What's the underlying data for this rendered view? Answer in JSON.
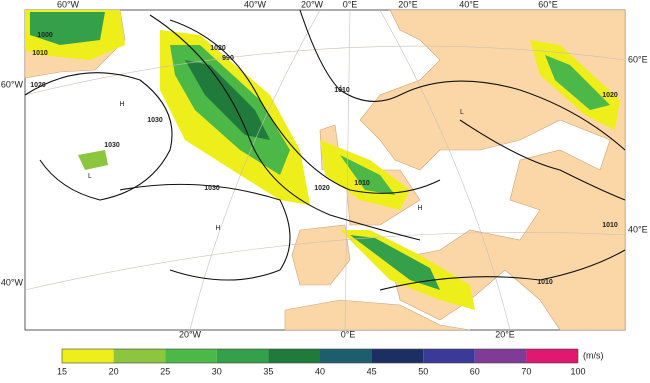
{
  "map": {
    "top_labels": [
      "60°W",
      "40°W",
      "20°W",
      "0°E",
      "20°E",
      "40°E",
      "60°E"
    ],
    "bottom_labels": [
      "20°W",
      "0°E",
      "20°E"
    ],
    "left_labels": [
      "60°W",
      "40°W"
    ],
    "right_labels": [
      "60°E",
      "40°E"
    ],
    "isobar_labels": [
      "1000",
      "1010",
      "1020",
      "1030",
      "990",
      "1010",
      "1020",
      "1030",
      "1020",
      "1010",
      "1030",
      "1020",
      "1010",
      "1010"
    ],
    "pressure_centers": [
      "H",
      "L",
      "H",
      "L",
      "H",
      "L"
    ]
  },
  "colorbar": {
    "ticks": [
      15,
      20,
      25,
      30,
      35,
      40,
      45,
      50,
      60,
      70,
      100
    ],
    "colors": [
      "#eeee1a",
      "#8cc63f",
      "#4cb848",
      "#34a14a",
      "#1f7a3c",
      "#1d5e6e",
      "#1c2f62",
      "#3b3a98",
      "#7f3b96",
      "#e0186e"
    ],
    "unit": "(m/s)"
  }
}
